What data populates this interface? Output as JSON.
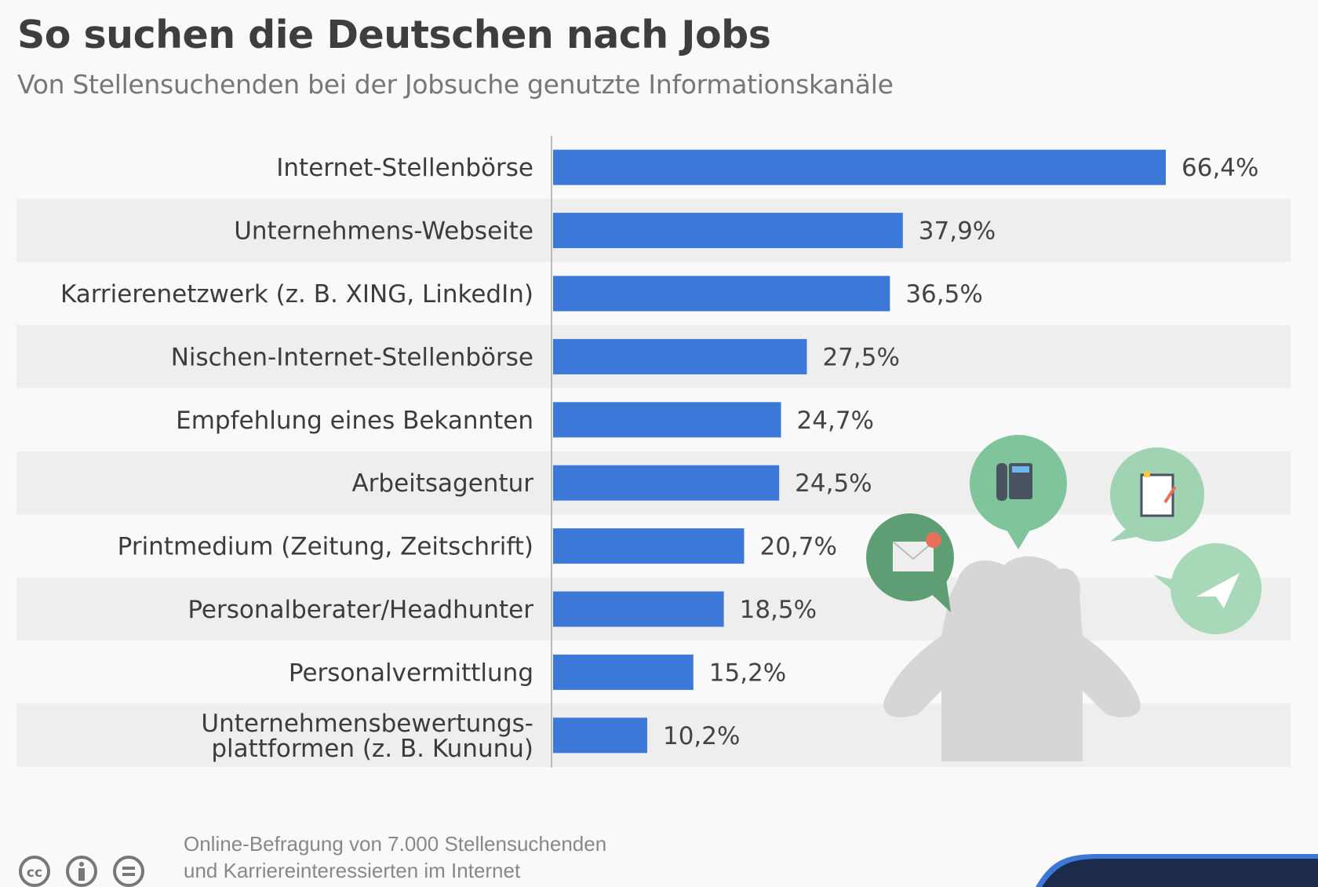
{
  "title": "So suchen die Deutschen nach Jobs",
  "subtitle": "Von Stellensuchenden bei der Jobsuche genutzte Informationskanäle",
  "footer": {
    "line1": "Online-Befragung von 7.000 Stellensuchenden",
    "line2": "und Karriereinteressierten im Internet"
  },
  "colors": {
    "bar": "#3b78d8",
    "stripe": "#eeeeee",
    "illustration_green": "#7fc49a",
    "silhouette": "#d6d6d6",
    "logo_navy": "#1d2b4a"
  },
  "icons": [
    "cc-license-icon",
    "attribution-icon",
    "no-derivatives-icon",
    "phone-bubble-icon",
    "notepad-bubble-icon",
    "mail-bubble-icon",
    "paper-plane-bubble-icon",
    "person-silhouette",
    "statista-logo"
  ],
  "chart_data": {
    "type": "bar",
    "orientation": "horizontal",
    "title": "So suchen die Deutschen nach Jobs",
    "subtitle": "Von Stellensuchenden bei der Jobsuche genutzte Informationskanäle",
    "categories": [
      [
        "Internet-Stellenbörse"
      ],
      [
        "Unternehmens-Webseite"
      ],
      [
        "Karrierenetzwerk (z. B. XING, LinkedIn)"
      ],
      [
        "Nischen-Internet-Stellenbörse"
      ],
      [
        "Empfehlung eines Bekannten"
      ],
      [
        "Arbeitsagentur"
      ],
      [
        "Printmedium (Zeitung, Zeitschrift)"
      ],
      [
        "Personalberater/Headhunter"
      ],
      [
        "Personalvermittlung"
      ],
      [
        "Unternehmensbewertungs-",
        "plattformen (z. B. Kununu)"
      ]
    ],
    "values": [
      66.4,
      37.9,
      36.5,
      27.5,
      24.7,
      24.5,
      20.7,
      18.5,
      15.2,
      10.2
    ],
    "value_labels": [
      "66,4%",
      "37,9%",
      "36,5%",
      "27,5%",
      "24,7%",
      "24,5%",
      "20,7%",
      "18,5%",
      "15,2%",
      "10,2%"
    ],
    "unit": "%",
    "xlim": [
      0,
      70
    ],
    "grid": false,
    "legend": "none"
  }
}
